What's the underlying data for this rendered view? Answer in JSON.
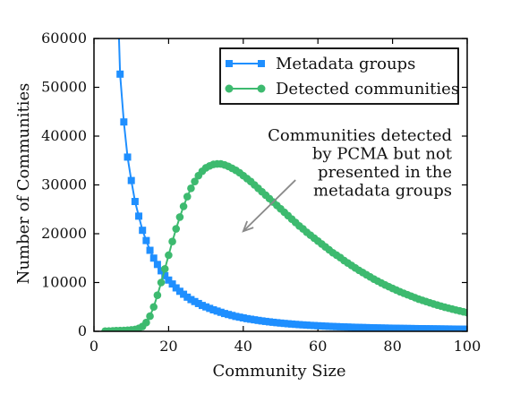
{
  "chart_data": {
    "type": "line",
    "title": "",
    "xlabel": "Community Size",
    "ylabel": "Number of Communities",
    "xlim": [
      0,
      100
    ],
    "ylim": [
      0,
      60000
    ],
    "xticks": [
      0,
      20,
      40,
      60,
      80,
      100
    ],
    "yticks": [
      0,
      10000,
      20000,
      30000,
      40000,
      50000,
      60000
    ],
    "grid": false,
    "legend_position": "top-right",
    "series": [
      {
        "name": "Metadata groups",
        "color": "#1f8fff",
        "marker": "square",
        "x": [
          7,
          8,
          9,
          10,
          11,
          12,
          13,
          14,
          15,
          16,
          17,
          18,
          19,
          20,
          21,
          22,
          23,
          24,
          25,
          26,
          27,
          28,
          29,
          30,
          31,
          32,
          33,
          34,
          35,
          36,
          37,
          38,
          39,
          40,
          41,
          42,
          43,
          44,
          45,
          46,
          47,
          48,
          49,
          50,
          51,
          52,
          53,
          54,
          55,
          56,
          57,
          58,
          59,
          60,
          61,
          62,
          63,
          64,
          65,
          66,
          67,
          68,
          69,
          70,
          71,
          72,
          73,
          74,
          75,
          76,
          77,
          78,
          79,
          80,
          81,
          82,
          83,
          84,
          85,
          86,
          87,
          88,
          89,
          90,
          91,
          92,
          93,
          94,
          95,
          96,
          97,
          98,
          99,
          100
        ],
        "values": [
          52700,
          42900,
          35700,
          30900,
          26600,
          23600,
          20700,
          18600,
          16600,
          15000,
          13700,
          12400,
          11400,
          10500,
          9700,
          8900,
          8200,
          7600,
          7000,
          6500,
          6100,
          5700,
          5300,
          5000,
          4700,
          4400,
          4150,
          3900,
          3650,
          3450,
          3250,
          3050,
          2900,
          2750,
          2600,
          2480,
          2360,
          2240,
          2130,
          2030,
          1940,
          1850,
          1770,
          1690,
          1620,
          1550,
          1490,
          1430,
          1370,
          1320,
          1270,
          1220,
          1180,
          1140,
          1100,
          1060,
          1025,
          990,
          960,
          930,
          900,
          875,
          850,
          825,
          800,
          780,
          760,
          740,
          720,
          700,
          685,
          670,
          655,
          640,
          625,
          610,
          598,
          586,
          574,
          563,
          552,
          541,
          531,
          521,
          511,
          502,
          493,
          484,
          475,
          467,
          459,
          451,
          443,
          436
        ]
      },
      {
        "name": "Detected communities",
        "color": "#3dba6f",
        "marker": "circle",
        "x": [
          3,
          4,
          5,
          6,
          7,
          8,
          9,
          10,
          11,
          12,
          13,
          14,
          15,
          16,
          17,
          18,
          19,
          20,
          21,
          22,
          23,
          24,
          25,
          26,
          27,
          28,
          29,
          30,
          31,
          32,
          33,
          34,
          35,
          36,
          37,
          38,
          39,
          40,
          41,
          42,
          43,
          44,
          45,
          46,
          47,
          48,
          49,
          50,
          51,
          52,
          53,
          54,
          55,
          56,
          57,
          58,
          59,
          60,
          61,
          62,
          63,
          64,
          65,
          66,
          67,
          68,
          69,
          70,
          71,
          72,
          73,
          74,
          75,
          76,
          77,
          78,
          79,
          80,
          81,
          82,
          83,
          84,
          85,
          86,
          87,
          88,
          89,
          90,
          91,
          92,
          93,
          94,
          95,
          96,
          97,
          98,
          99,
          100
        ],
        "values": [
          30,
          60,
          90,
          120,
          150,
          180,
          220,
          280,
          380,
          600,
          1000,
          1800,
          3100,
          5000,
          7400,
          10000,
          12800,
          15600,
          18400,
          21000,
          23400,
          25600,
          27600,
          29300,
          30700,
          31900,
          32800,
          33500,
          33900,
          34200,
          34300,
          34300,
          34100,
          33800,
          33400,
          33000,
          32500,
          31900,
          31300,
          30700,
          30000,
          29300,
          28600,
          27900,
          27200,
          26500,
          25800,
          25100,
          24400,
          23700,
          23000,
          22300,
          21600,
          21000,
          20300,
          19700,
          19100,
          18500,
          17900,
          17300,
          16700,
          16100,
          15600,
          15100,
          14500,
          14000,
          13500,
          13000,
          12500,
          12050,
          11600,
          11150,
          10700,
          10300,
          9900,
          9500,
          9150,
          8800,
          8450,
          8100,
          7800,
          7500,
          7200,
          6900,
          6600,
          6350,
          6100,
          5850,
          5600,
          5380,
          5160,
          4950,
          4750,
          4550,
          4360,
          4180,
          4000,
          3830
        ]
      }
    ],
    "annotations": [
      {
        "lines": [
          "Communities detected",
          "by PCMA but not",
          "presented in the",
          "metadata groups"
        ],
        "arrow_from": [
          54,
          31000
        ],
        "arrow_to": [
          40,
          20500
        ],
        "arrow_color": "#8a8a8a"
      }
    ]
  }
}
